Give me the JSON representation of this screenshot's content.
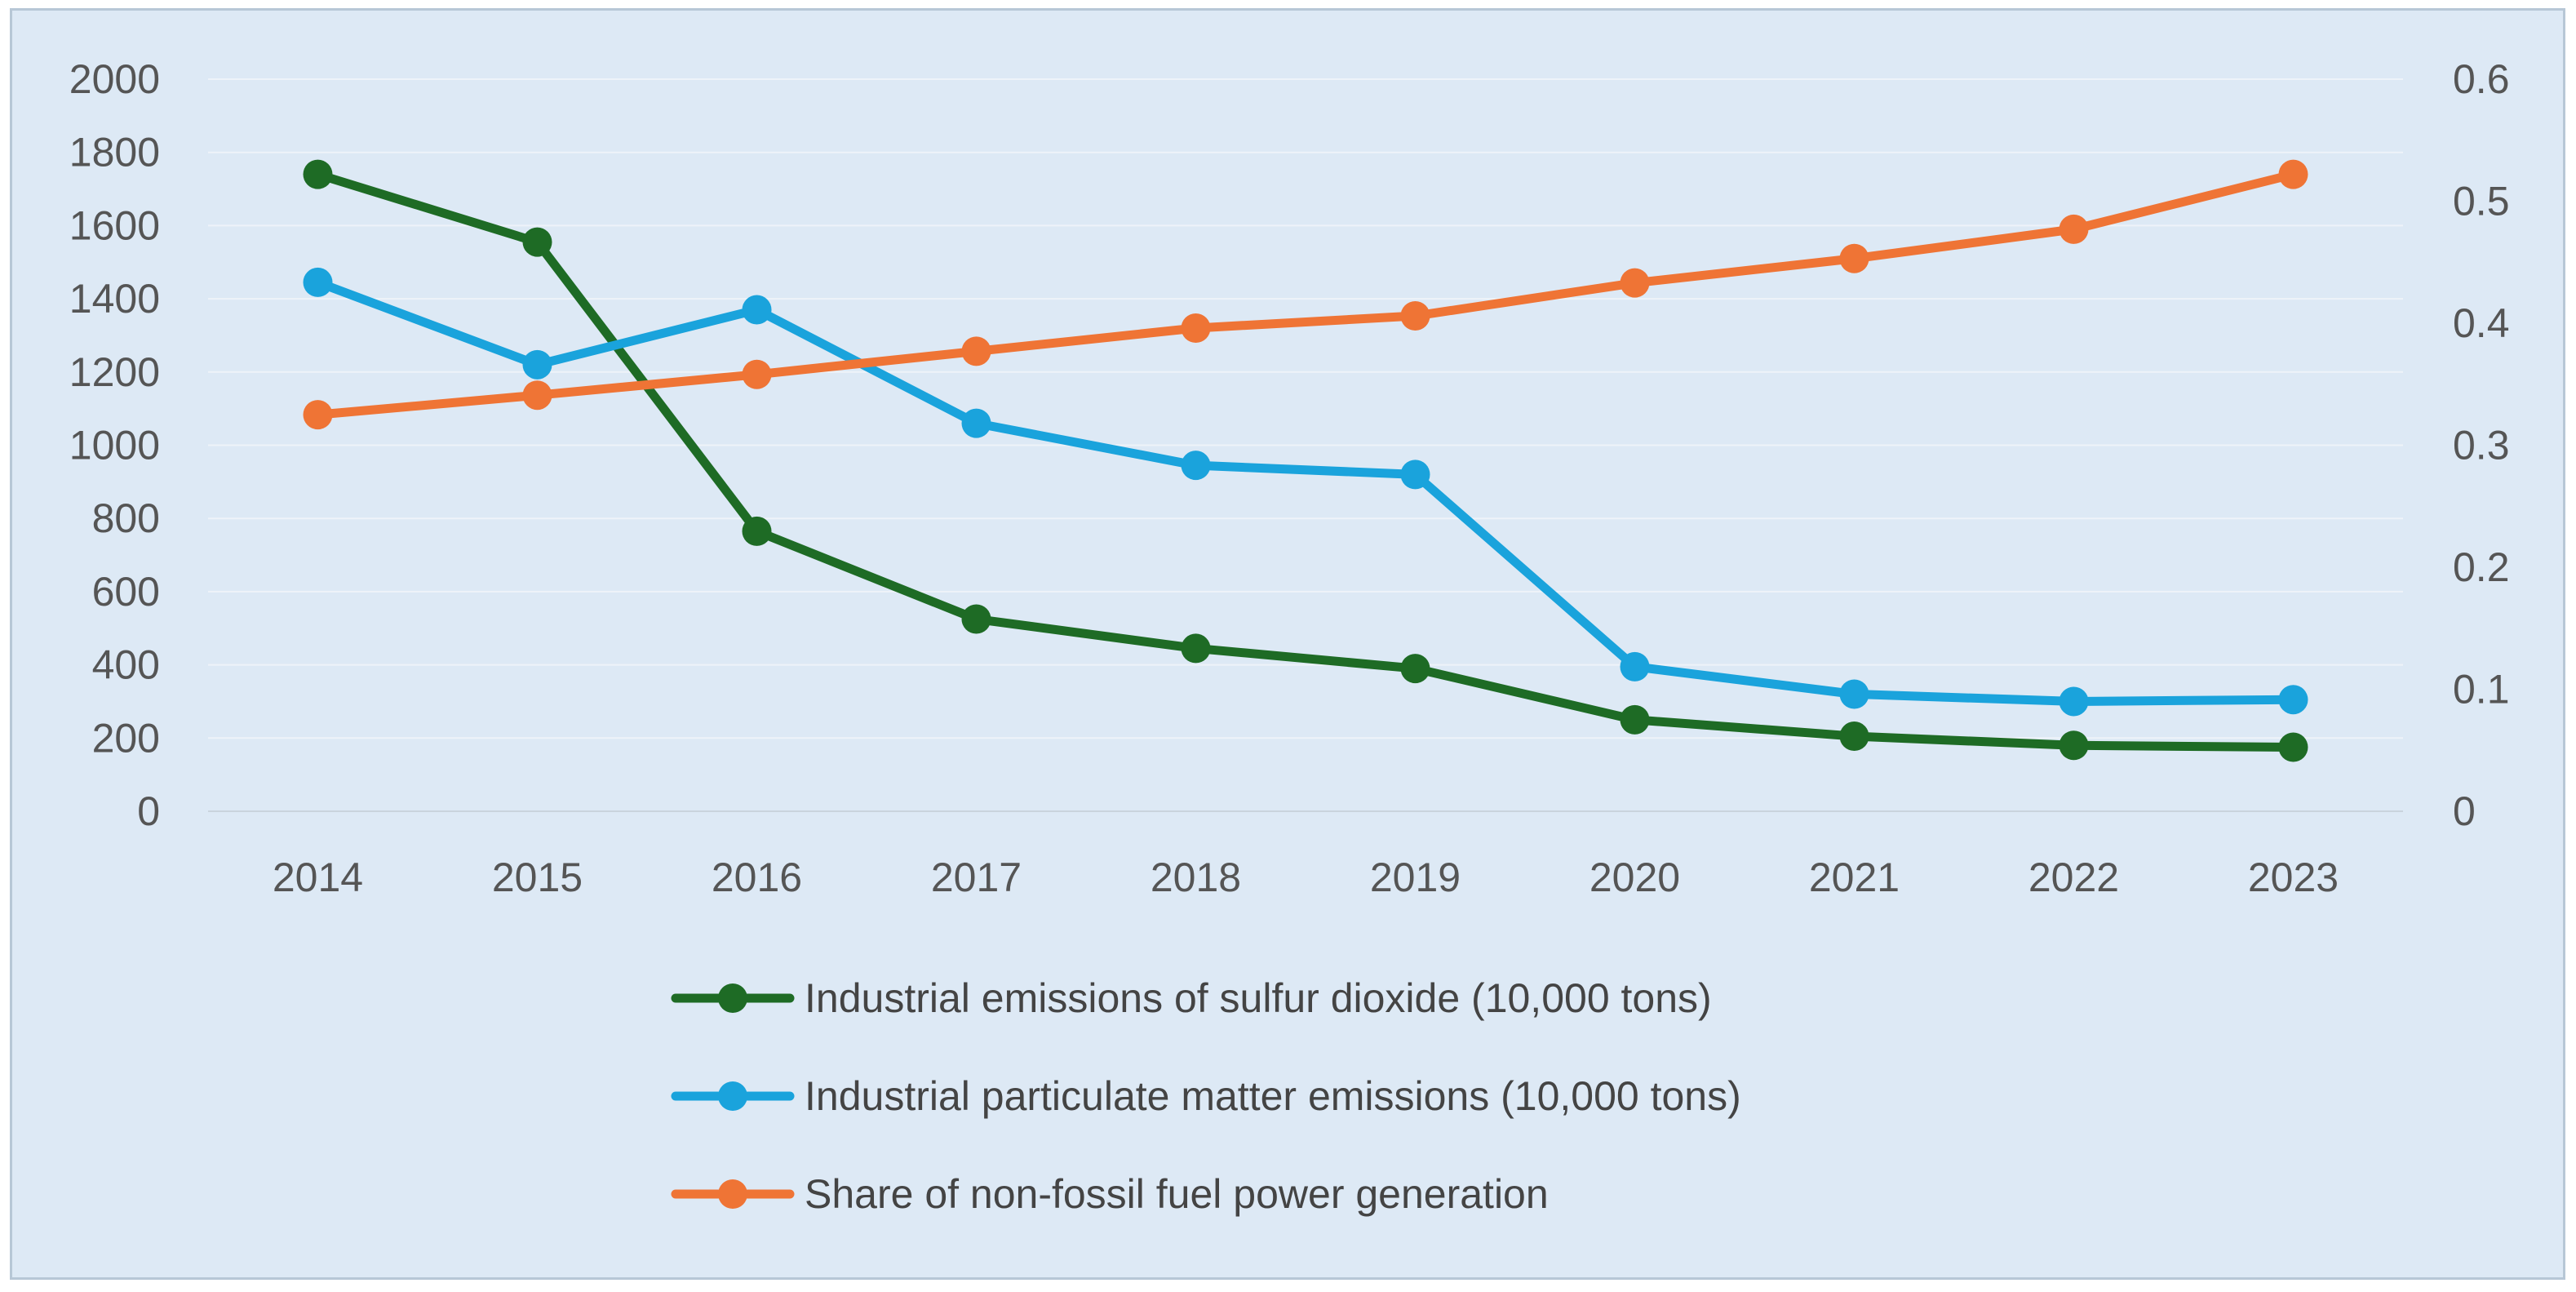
{
  "chart_data": {
    "type": "line",
    "title": "",
    "xlabel": "",
    "ylabel": "",
    "categories": [
      "2014",
      "2015",
      "2016",
      "2017",
      "2018",
      "2019",
      "2020",
      "2021",
      "2022",
      "2023"
    ],
    "y_left": {
      "min": 0,
      "max": 2000,
      "step": 200,
      "ticks": [
        "0",
        "200",
        "400",
        "600",
        "800",
        "1000",
        "1200",
        "1400",
        "1600",
        "1800",
        "2000"
      ]
    },
    "y_right": {
      "min": 0,
      "max": 0.6,
      "step": 0.1,
      "ticks": [
        "0",
        "0.1",
        "0.2",
        "0.3",
        "0.4",
        "0.5",
        "0.6"
      ]
    },
    "grid": true,
    "legend_position": "bottom",
    "series": [
      {
        "name": "Industrial emissions of sulfur dioxide (10,000 tons)",
        "axis": "left",
        "color": "#1e6b25",
        "values": [
          1740,
          1555,
          765,
          525,
          445,
          390,
          250,
          205,
          180,
          175
        ]
      },
      {
        "name": "Industrial particulate matter emissions (10,000 tons)",
        "axis": "left",
        "color": "#1aa3dc",
        "values": [
          1445,
          1220,
          1370,
          1060,
          945,
          920,
          395,
          320,
          300,
          305
        ]
      },
      {
        "name": "Share of non-fossil fuel power generation",
        "axis": "right",
        "color": "#ef7435",
        "values": [
          0.325,
          0.341,
          0.358,
          0.377,
          0.396,
          0.406,
          0.433,
          0.453,
          0.477,
          0.522
        ]
      }
    ]
  }
}
